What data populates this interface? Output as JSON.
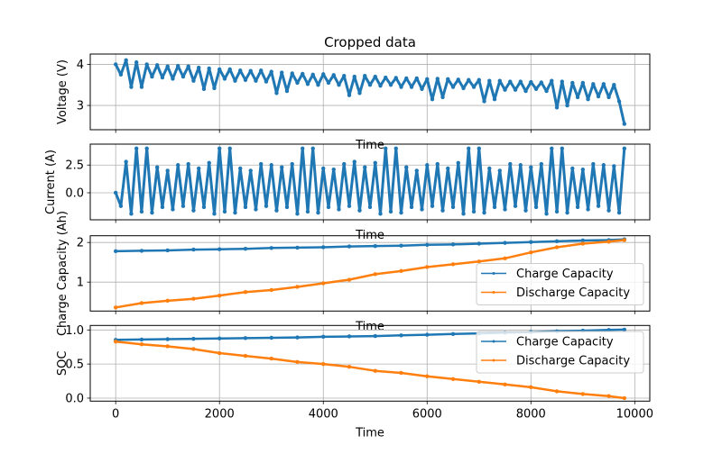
{
  "chart_data": [
    {
      "type": "line",
      "title": "Cropped data",
      "xlabel": "Time",
      "ylabel": "Voltage (V)",
      "xlim": [
        -490,
        10290
      ],
      "ylim": [
        2.41,
        4.25
      ],
      "yticks": [
        {
          "v": 3,
          "label": "3"
        },
        {
          "v": 4,
          "label": "4"
        }
      ],
      "grid": true,
      "series": [
        {
          "color": "#1f77b4",
          "x": [
            0,
            100,
            200,
            300,
            400,
            500,
            600,
            700,
            800,
            900,
            1000,
            1100,
            1200,
            1300,
            1400,
            1500,
            1600,
            1700,
            1800,
            1900,
            2000,
            2100,
            2200,
            2300,
            2400,
            2500,
            2600,
            2700,
            2800,
            2900,
            3000,
            3100,
            3200,
            3300,
            3400,
            3500,
            3600,
            3700,
            3800,
            3900,
            4000,
            4100,
            4200,
            4300,
            4400,
            4500,
            4600,
            4700,
            4800,
            4900,
            5000,
            5100,
            5200,
            5300,
            5400,
            5500,
            5600,
            5700,
            5800,
            5900,
            6000,
            6100,
            6200,
            6300,
            6400,
            6500,
            6600,
            6700,
            6800,
            6900,
            7000,
            7100,
            7200,
            7300,
            7400,
            7500,
            7600,
            7700,
            7800,
            7900,
            8000,
            8100,
            8200,
            8300,
            8400,
            8500,
            8600,
            8700,
            8800,
            8900,
            9000,
            9100,
            9200,
            9300,
            9400,
            9500,
            9600,
            9700,
            9800
          ],
          "y": [
            4.0,
            3.75,
            4.1,
            3.45,
            4.05,
            3.45,
            4.0,
            3.7,
            3.98,
            3.68,
            3.95,
            3.65,
            3.96,
            3.7,
            3.95,
            3.6,
            3.92,
            3.4,
            3.9,
            3.42,
            3.88,
            3.65,
            3.88,
            3.6,
            3.85,
            3.62,
            3.84,
            3.6,
            3.85,
            3.58,
            3.82,
            3.3,
            3.8,
            3.35,
            3.78,
            3.55,
            3.77,
            3.52,
            3.75,
            3.5,
            3.76,
            3.55,
            3.74,
            3.5,
            3.72,
            3.25,
            3.7,
            3.3,
            3.72,
            3.5,
            3.7,
            3.48,
            3.68,
            3.5,
            3.67,
            3.45,
            3.66,
            3.45,
            3.66,
            3.4,
            3.64,
            3.15,
            3.65,
            3.2,
            3.64,
            3.45,
            3.63,
            3.42,
            3.62,
            3.45,
            3.62,
            3.1,
            3.6,
            3.15,
            3.6,
            3.38,
            3.58,
            3.38,
            3.58,
            3.35,
            3.57,
            3.4,
            3.56,
            3.35,
            3.6,
            2.95,
            3.58,
            3.0,
            3.55,
            3.2,
            3.55,
            3.15,
            3.52,
            3.22,
            3.52,
            3.2,
            3.5,
            3.1,
            2.55
          ]
        }
      ]
    },
    {
      "type": "line",
      "xlabel": "Time",
      "ylabel": "Current (A)",
      "xlim": [
        -490,
        10290
      ],
      "ylim": [
        -2.44,
        4.39
      ],
      "yticks": [
        {
          "v": 0,
          "label": "0.0"
        },
        {
          "v": 2.5,
          "label": "2.5"
        }
      ],
      "grid": true,
      "series": [
        {
          "color": "#1f77b4",
          "x": [
            0,
            100,
            200,
            300,
            400,
            500,
            600,
            700,
            800,
            900,
            1000,
            1100,
            1200,
            1300,
            1400,
            1500,
            1600,
            1700,
            1800,
            1900,
            2000,
            2100,
            2200,
            2300,
            2400,
            2500,
            2600,
            2700,
            2800,
            2900,
            3000,
            3100,
            3200,
            3300,
            3400,
            3500,
            3600,
            3700,
            3800,
            3900,
            4000,
            4100,
            4200,
            4300,
            4400,
            4500,
            4600,
            4700,
            4800,
            4900,
            5000,
            5100,
            5200,
            5300,
            5400,
            5500,
            5600,
            5700,
            5800,
            5900,
            6000,
            6100,
            6200,
            6300,
            6400,
            6500,
            6600,
            6700,
            6800,
            6900,
            7000,
            7100,
            7200,
            7300,
            7400,
            7500,
            7600,
            7700,
            7800,
            7900,
            8000,
            8100,
            8200,
            8300,
            8400,
            8500,
            8600,
            8700,
            8800,
            8900,
            9000,
            9100,
            9200,
            9300,
            9400,
            9500,
            9600,
            9700,
            9800
          ],
          "y": [
            0.0,
            -1.2,
            2.8,
            -1.9,
            4.0,
            -1.7,
            4.0,
            -1.8,
            2.3,
            -1.3,
            2.0,
            -1.5,
            2.5,
            -1.2,
            2.6,
            -1.6,
            2.2,
            -1.3,
            2.7,
            -1.9,
            4.0,
            -1.7,
            4.0,
            -1.8,
            2.2,
            -1.3,
            2.0,
            -1.5,
            2.6,
            -1.2,
            2.5,
            -1.6,
            2.3,
            -1.3,
            2.6,
            -1.9,
            4.0,
            -1.7,
            4.0,
            -1.8,
            2.2,
            -1.3,
            2.1,
            -1.5,
            2.6,
            -1.2,
            2.8,
            -1.6,
            2.3,
            -1.3,
            2.7,
            -1.9,
            4.0,
            -1.7,
            4.0,
            -1.8,
            2.3,
            -1.3,
            2.0,
            -1.5,
            2.5,
            -1.2,
            2.6,
            -1.6,
            2.2,
            -1.3,
            2.7,
            -1.9,
            4.0,
            -1.7,
            4.0,
            -1.8,
            2.2,
            -1.3,
            2.0,
            -1.5,
            2.6,
            -1.2,
            2.5,
            -1.6,
            2.3,
            -1.3,
            2.6,
            -1.9,
            4.0,
            -1.7,
            4.0,
            -1.8,
            2.2,
            -1.3,
            2.1,
            -1.5,
            2.6,
            -1.2,
            2.5,
            -1.6,
            2.4,
            -1.8,
            4.0
          ]
        }
      ]
    },
    {
      "type": "line",
      "xlabel": "Time",
      "ylabel": "Charge Capacity (Ah)",
      "xlim": [
        -490,
        10290
      ],
      "ylim": [
        0.27,
        2.17
      ],
      "yticks": [
        {
          "v": 1,
          "label": "1"
        },
        {
          "v": 2,
          "label": "2"
        }
      ],
      "grid": true,
      "legend": "lower-right",
      "series": [
        {
          "name": "Charge Capacity",
          "color": "#1f77b4",
          "x": [
            0,
            500,
            1000,
            1500,
            2000,
            2500,
            3000,
            3500,
            4000,
            4500,
            5000,
            5500,
            6000,
            6500,
            7000,
            7500,
            8000,
            8500,
            9000,
            9500,
            9800
          ],
          "y": [
            1.78,
            1.79,
            1.8,
            1.82,
            1.83,
            1.84,
            1.86,
            1.87,
            1.88,
            1.9,
            1.91,
            1.92,
            1.94,
            1.95,
            1.97,
            1.99,
            2.01,
            2.03,
            2.05,
            2.06,
            2.08
          ]
        },
        {
          "name": "Discharge Capacity",
          "color": "#ff7f0e",
          "x": [
            0,
            500,
            1000,
            1500,
            2000,
            2500,
            3000,
            3500,
            4000,
            4500,
            5000,
            5500,
            6000,
            6500,
            7000,
            7500,
            8000,
            8500,
            9000,
            9500,
            9800
          ],
          "y": [
            0.36,
            0.47,
            0.53,
            0.58,
            0.66,
            0.75,
            0.8,
            0.88,
            0.97,
            1.06,
            1.2,
            1.28,
            1.38,
            1.45,
            1.52,
            1.6,
            1.75,
            1.88,
            1.97,
            2.02,
            2.06
          ]
        }
      ]
    },
    {
      "type": "line",
      "xlabel": "Time",
      "ylabel": "SOC",
      "xlim": [
        -490,
        10290
      ],
      "ylim": [
        -0.044,
        1.066
      ],
      "xticks": [
        {
          "v": 0,
          "label": "0"
        },
        {
          "v": 2000,
          "label": "2000"
        },
        {
          "v": 4000,
          "label": "4000"
        },
        {
          "v": 6000,
          "label": "6000"
        },
        {
          "v": 8000,
          "label": "8000"
        },
        {
          "v": 10000,
          "label": "10000"
        }
      ],
      "yticks": [
        {
          "v": 0,
          "label": "0.0"
        },
        {
          "v": 0.5,
          "label": "0.5"
        },
        {
          "v": 1.0,
          "label": "1.0"
        }
      ],
      "grid": true,
      "legend": "upper-right",
      "series": [
        {
          "name": "Charge Capacity",
          "color": "#1f77b4",
          "x": [
            0,
            500,
            1000,
            1500,
            2000,
            2500,
            3000,
            3500,
            4000,
            4500,
            5000,
            5500,
            6000,
            6500,
            7000,
            7500,
            8000,
            8500,
            9000,
            9500,
            9800
          ],
          "y": [
            0.855,
            0.86,
            0.865,
            0.87,
            0.875,
            0.88,
            0.885,
            0.89,
            0.9,
            0.905,
            0.91,
            0.92,
            0.93,
            0.94,
            0.95,
            0.96,
            0.97,
            0.98,
            0.99,
            1.0,
            1.005
          ]
        },
        {
          "name": "Discharge Capacity",
          "color": "#ff7f0e",
          "x": [
            0,
            500,
            1000,
            1500,
            2000,
            2500,
            3000,
            3500,
            4000,
            4500,
            5000,
            5500,
            6000,
            6500,
            7000,
            7500,
            8000,
            8500,
            9000,
            9500,
            9800
          ],
          "y": [
            0.83,
            0.79,
            0.76,
            0.72,
            0.66,
            0.62,
            0.58,
            0.53,
            0.5,
            0.46,
            0.4,
            0.37,
            0.32,
            0.28,
            0.24,
            0.2,
            0.16,
            0.1,
            0.06,
            0.03,
            0.0
          ]
        }
      ]
    }
  ]
}
